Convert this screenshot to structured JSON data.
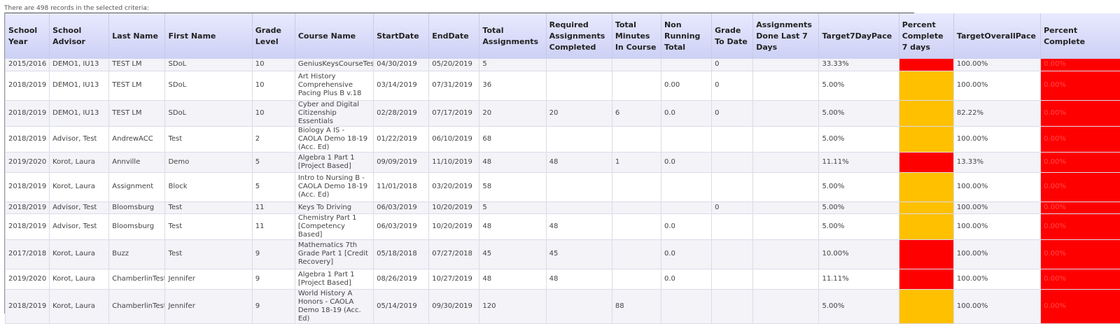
{
  "caption": "There are 498 records in the selected criteria:",
  "colors": {
    "red": "#ff0000",
    "orange": "#ffc000",
    "header": "#d9dcf8"
  },
  "columns": [
    {
      "key": "school_year",
      "label": "School Year"
    },
    {
      "key": "advisor",
      "label": "School Advisor"
    },
    {
      "key": "last_name",
      "label": "Last Name"
    },
    {
      "key": "first_name",
      "label": "First Name"
    },
    {
      "key": "grade_level",
      "label": "Grade Level"
    },
    {
      "key": "course",
      "label": "Course Name"
    },
    {
      "key": "start",
      "label": "StartDate"
    },
    {
      "key": "end",
      "label": "EndDate"
    },
    {
      "key": "total_assign",
      "label": "Total Assignments"
    },
    {
      "key": "req_done",
      "label": "Required Assignments Completed"
    },
    {
      "key": "minutes",
      "label": "Total Minutes In Course"
    },
    {
      "key": "non_running",
      "label": "Non Running Total"
    },
    {
      "key": "grade_to_date",
      "label": "Grade To Date"
    },
    {
      "key": "done_7",
      "label": "Assignments Done Last 7 Days"
    },
    {
      "key": "target7",
      "label": "Target7DayPace"
    },
    {
      "key": "pct7",
      "label": "Percent Complete 7 days"
    },
    {
      "key": "target_overall",
      "label": "TargetOverallPace"
    },
    {
      "key": "pct_complete",
      "label": "Percent Complete"
    }
  ],
  "rows": [
    {
      "school_year": "2015/2016",
      "advisor": "DEMO1, IU13",
      "last_name": "TEST LM",
      "first_name": "SDoL",
      "grade_level": "10",
      "course": "GeniusKeysCourseTest",
      "start": "04/30/2019",
      "end": "05/20/2019",
      "total_assign": "5",
      "req_done": "",
      "minutes": "",
      "non_running": "",
      "grade_to_date": "0",
      "done_7": "",
      "target7": "33.33%",
      "pct7": "",
      "pct7_status": "red",
      "target_overall": "100.00%",
      "pct_complete": "0.00%"
    },
    {
      "school_year": "2018/2019",
      "advisor": "DEMO1, IU13",
      "last_name": "TEST LM",
      "first_name": "SDoL",
      "grade_level": "10",
      "course": "Art History Comprehensive Pacing Plus B v.18",
      "start": "03/14/2019",
      "end": "07/31/2019",
      "total_assign": "36",
      "req_done": "",
      "minutes": "",
      "non_running": "0.00",
      "grade_to_date": "0",
      "done_7": "",
      "target7": "5.00%",
      "pct7": "",
      "pct7_status": "orange",
      "target_overall": "100.00%",
      "pct_complete": "0.00%"
    },
    {
      "school_year": "2018/2019",
      "advisor": "DEMO1, IU13",
      "last_name": "TEST LM",
      "first_name": "SDoL",
      "grade_level": "10",
      "course": "Cyber and Digital Citizenship Essentials",
      "start": "02/28/2019",
      "end": "07/17/2019",
      "total_assign": "20",
      "req_done": "20",
      "minutes": "6",
      "non_running": "0.0",
      "grade_to_date": "0",
      "done_7": "",
      "target7": "5.00%",
      "pct7": "",
      "pct7_status": "orange",
      "target_overall": "82.22%",
      "pct_complete": "0.00%"
    },
    {
      "school_year": "2018/2019",
      "advisor": "Advisor, Test",
      "last_name": "AndrewACC",
      "first_name": "Test",
      "grade_level": "2",
      "course": "Biology A IS - CAOLA Demo 18-19 (Acc. Ed)",
      "start": "01/22/2019",
      "end": "06/10/2019",
      "total_assign": "68",
      "req_done": "",
      "minutes": "",
      "non_running": "",
      "grade_to_date": "",
      "done_7": "",
      "target7": "5.00%",
      "pct7": "",
      "pct7_status": "orange",
      "target_overall": "100.00%",
      "pct_complete": "0.00%"
    },
    {
      "school_year": "2019/2020",
      "advisor": "Korot, Laura",
      "last_name": "Annville",
      "first_name": "Demo",
      "grade_level": "5",
      "course": "Algebra 1 Part 1 [Project Based]",
      "start": "09/09/2019",
      "end": "11/10/2019",
      "total_assign": "48",
      "req_done": "48",
      "minutes": "1",
      "non_running": "0.0",
      "grade_to_date": "",
      "done_7": "",
      "target7": "11.11%",
      "pct7": "",
      "pct7_status": "red",
      "target_overall": "13.33%",
      "pct_complete": "0.00%"
    },
    {
      "school_year": "2018/2019",
      "advisor": "Korot, Laura",
      "last_name": "Assignment",
      "first_name": "Block",
      "grade_level": "5",
      "course": "Intro to Nursing B - CAOLA Demo 18-19 (Acc. Ed)",
      "start": "11/01/2018",
      "end": "03/20/2019",
      "total_assign": "58",
      "req_done": "",
      "minutes": "",
      "non_running": "",
      "grade_to_date": "",
      "done_7": "",
      "target7": "5.00%",
      "pct7": "",
      "pct7_status": "orange",
      "target_overall": "100.00%",
      "pct_complete": "0.00%"
    },
    {
      "school_year": "2018/2019",
      "advisor": "Advisor, Test",
      "last_name": "Bloomsburg",
      "first_name": "Test",
      "grade_level": "11",
      "course": "Keys To Driving",
      "start": "06/03/2019",
      "end": "10/20/2019",
      "total_assign": "5",
      "req_done": "",
      "minutes": "",
      "non_running": "",
      "grade_to_date": "0",
      "done_7": "",
      "target7": "5.00%",
      "pct7": "",
      "pct7_status": "orange",
      "target_overall": "100.00%",
      "pct_complete": "0.00%"
    },
    {
      "school_year": "2018/2019",
      "advisor": "Advisor, Test",
      "last_name": "Bloomsburg",
      "first_name": "Test",
      "grade_level": "11",
      "course": "Chemistry Part 1 [Competency Based]",
      "start": "06/03/2019",
      "end": "10/20/2019",
      "total_assign": "48",
      "req_done": "48",
      "minutes": "",
      "non_running": "0.0",
      "grade_to_date": "",
      "done_7": "",
      "target7": "5.00%",
      "pct7": "",
      "pct7_status": "orange",
      "target_overall": "100.00%",
      "pct_complete": "0.00%"
    },
    {
      "school_year": "2017/2018",
      "advisor": "Korot, Laura",
      "last_name": "Buzz",
      "first_name": "Test",
      "grade_level": "9",
      "course": "Mathematics 7th Grade Part 1 [Credit Recovery]",
      "start": "05/18/2018",
      "end": "07/27/2018",
      "total_assign": "45",
      "req_done": "45",
      "minutes": "",
      "non_running": "0.0",
      "grade_to_date": "",
      "done_7": "",
      "target7": "10.00%",
      "pct7": "",
      "pct7_status": "red",
      "target_overall": "100.00%",
      "pct_complete": "0.00%"
    },
    {
      "school_year": "2019/2020",
      "advisor": "Korot, Laura",
      "last_name": "ChamberlinTest",
      "first_name": "Jennifer",
      "grade_level": "9",
      "course": "Algebra 1 Part 1 [Project Based]",
      "start": "08/26/2019",
      "end": "10/27/2019",
      "total_assign": "48",
      "req_done": "48",
      "minutes": "",
      "non_running": "0.0",
      "grade_to_date": "",
      "done_7": "",
      "target7": "11.11%",
      "pct7": "",
      "pct7_status": "red",
      "target_overall": "100.00%",
      "pct_complete": "0.00%"
    },
    {
      "school_year": "2018/2019",
      "advisor": "Korot, Laura",
      "last_name": "ChamberlinTest",
      "first_name": "Jennifer",
      "grade_level": "9",
      "course": "World History A Honors - CAOLA Demo 18-19 (Acc. Ed)",
      "start": "05/14/2019",
      "end": "09/30/2019",
      "total_assign": "120",
      "req_done": "",
      "minutes": "88",
      "non_running": "",
      "grade_to_date": "",
      "done_7": "",
      "target7": "5.00%",
      "pct7": "",
      "pct7_status": "orange",
      "target_overall": "100.00%",
      "pct_complete": "0.00%"
    }
  ]
}
